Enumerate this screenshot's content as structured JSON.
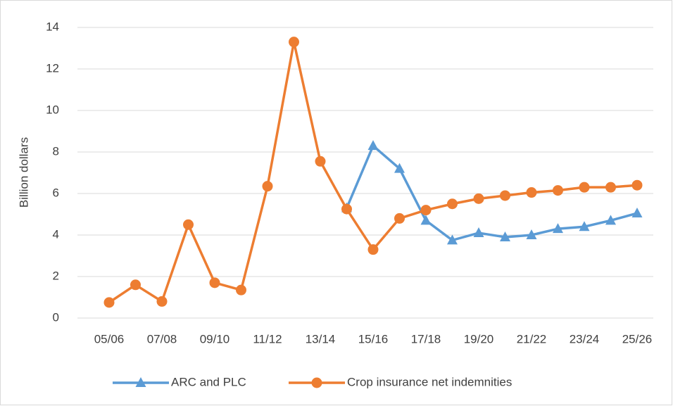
{
  "chart_data": {
    "type": "line",
    "y_label": "Billion dollars",
    "categories": [
      "05/06",
      null,
      "07/08",
      null,
      "09/10",
      null,
      "11/12",
      null,
      "13/14",
      null,
      "15/16",
      null,
      "17/18",
      null,
      "19/20",
      null,
      "21/22",
      null,
      "23/24",
      null,
      "25/26"
    ],
    "series": [
      {
        "name": "ARC and PLC",
        "color": "#5b9bd5",
        "marker": "triangle",
        "values": [
          null,
          null,
          null,
          null,
          null,
          null,
          null,
          null,
          null,
          5.3,
          8.3,
          7.2,
          4.7,
          3.75,
          4.1,
          3.9,
          4.0,
          4.3,
          4.4,
          4.7,
          5.05
        ]
      },
      {
        "name": "Crop insurance net indemnities",
        "color": "#ed7d31",
        "marker": "circle",
        "values": [
          0.75,
          1.6,
          0.8,
          4.5,
          1.7,
          1.35,
          6.35,
          13.3,
          7.55,
          5.25,
          3.3,
          4.8,
          5.2,
          5.5,
          5.75,
          5.9,
          6.05,
          6.15,
          6.3,
          6.3,
          6.4
        ]
      }
    ],
    "ylim": [
      0,
      14
    ],
    "yticks": [
      0,
      2,
      4,
      6,
      8,
      10,
      12,
      14
    ],
    "grid": true,
    "legend": "bottom"
  }
}
